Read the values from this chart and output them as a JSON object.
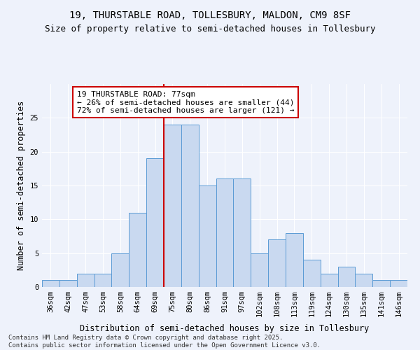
{
  "title_line1": "19, THURSTABLE ROAD, TOLLESBURY, MALDON, CM9 8SF",
  "title_line2": "Size of property relative to semi-detached houses in Tollesbury",
  "xlabel": "Distribution of semi-detached houses by size in Tollesbury",
  "ylabel": "Number of semi-detached properties",
  "categories": [
    "36sqm",
    "42sqm",
    "47sqm",
    "53sqm",
    "58sqm",
    "64sqm",
    "69sqm",
    "75sqm",
    "80sqm",
    "86sqm",
    "91sqm",
    "97sqm",
    "102sqm",
    "108sqm",
    "113sqm",
    "119sqm",
    "124sqm",
    "130sqm",
    "135sqm",
    "141sqm",
    "146sqm"
  ],
  "values": [
    1,
    1,
    2,
    2,
    5,
    11,
    19,
    24,
    24,
    15,
    16,
    16,
    5,
    7,
    8,
    4,
    2,
    3,
    2,
    1,
    1
  ],
  "bar_color": "#c9d9f0",
  "bar_edge_color": "#5b9bd5",
  "vline_x": 6.5,
  "vline_color": "#cc0000",
  "annotation_text": "19 THURSTABLE ROAD: 77sqm\n← 26% of semi-detached houses are smaller (44)\n72% of semi-detached houses are larger (121) →",
  "annotation_box_color": "#ffffff",
  "annotation_box_edge": "#cc0000",
  "ylim": [
    0,
    30
  ],
  "yticks": [
    0,
    5,
    10,
    15,
    20,
    25
  ],
  "background_color": "#eef2fb",
  "footer_text": "Contains HM Land Registry data © Crown copyright and database right 2025.\nContains public sector information licensed under the Open Government Licence v3.0.",
  "title_fontsize": 10,
  "subtitle_fontsize": 9,
  "axis_label_fontsize": 8.5,
  "tick_fontsize": 7.5,
  "annotation_fontsize": 8,
  "footer_fontsize": 6.5
}
